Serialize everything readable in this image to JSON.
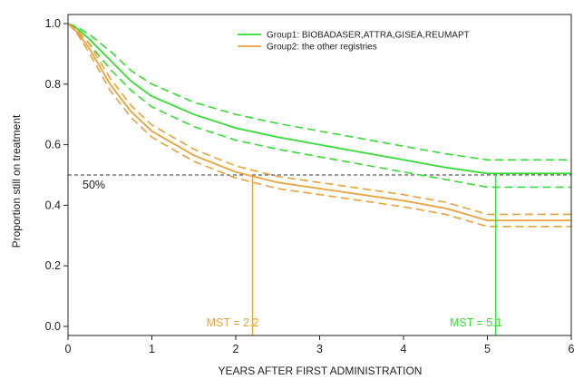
{
  "chart_data": {
    "type": "line",
    "title": "",
    "xlabel": "YEARS AFTER FIRST ADMINISTRATION",
    "ylabel": "Proportion still on treatment",
    "xlim": [
      0,
      6
    ],
    "ylim": [
      -0.03,
      1.03
    ],
    "x_ticks": [
      "0",
      "1",
      "2",
      "3",
      "4",
      "5",
      "6"
    ],
    "y_ticks": [
      "0.0",
      "0.2",
      "0.4",
      "0.6",
      "0.8",
      "1.0"
    ],
    "grid": false,
    "legend_position": "top-right",
    "colors": {
      "group1": "#33dd33",
      "group2": "#e8a23a",
      "reference": "#333333"
    },
    "series": [
      {
        "name": "Group1: BIOBADASER,ATTRA,GISEA,REUMAPT",
        "color_key": "group1",
        "x": [
          0,
          0.1,
          0.25,
          0.5,
          0.75,
          1.0,
          1.5,
          2.0,
          2.5,
          3.0,
          3.5,
          4.0,
          4.5,
          5.0,
          6.0
        ],
        "y": [
          1.0,
          0.985,
          0.95,
          0.88,
          0.81,
          0.76,
          0.7,
          0.655,
          0.625,
          0.6,
          0.575,
          0.55,
          0.525,
          0.505,
          0.505
        ],
        "lower": [
          1.0,
          0.98,
          0.935,
          0.85,
          0.78,
          0.725,
          0.66,
          0.615,
          0.585,
          0.56,
          0.535,
          0.51,
          0.485,
          0.46,
          0.46
        ],
        "upper": [
          1.0,
          0.99,
          0.965,
          0.91,
          0.845,
          0.8,
          0.74,
          0.7,
          0.67,
          0.645,
          0.62,
          0.595,
          0.57,
          0.55,
          0.55
        ]
      },
      {
        "name": "Group2: the other registries",
        "color_key": "group2",
        "x": [
          0,
          0.1,
          0.25,
          0.5,
          0.75,
          1.0,
          1.5,
          2.0,
          2.5,
          3.0,
          3.5,
          4.0,
          4.5,
          5.0,
          6.0
        ],
        "y": [
          1.0,
          0.975,
          0.92,
          0.8,
          0.71,
          0.645,
          0.565,
          0.51,
          0.475,
          0.455,
          0.435,
          0.415,
          0.39,
          0.35,
          0.35
        ],
        "lower": [
          1.0,
          0.97,
          0.905,
          0.78,
          0.69,
          0.625,
          0.545,
          0.49,
          0.455,
          0.435,
          0.415,
          0.395,
          0.37,
          0.33,
          0.33
        ],
        "upper": [
          1.0,
          0.98,
          0.935,
          0.82,
          0.73,
          0.665,
          0.585,
          0.53,
          0.495,
          0.475,
          0.455,
          0.435,
          0.41,
          0.37,
          0.37
        ]
      }
    ],
    "reference_line": {
      "y": 0.5,
      "label": "50%"
    },
    "median_markers": [
      {
        "x": 2.2,
        "label": "MST = 2.2",
        "color_key": "group2"
      },
      {
        "x": 5.1,
        "label": "MST = 5.1",
        "color_key": "group1"
      }
    ]
  }
}
